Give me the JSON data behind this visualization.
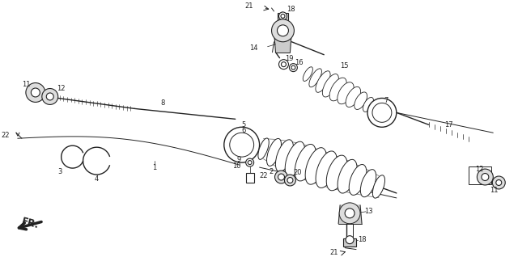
{
  "bg_color": "#ffffff",
  "fig_width": 6.4,
  "fig_height": 3.18,
  "line_color": "#222222",
  "label_fontsize": 6.0
}
